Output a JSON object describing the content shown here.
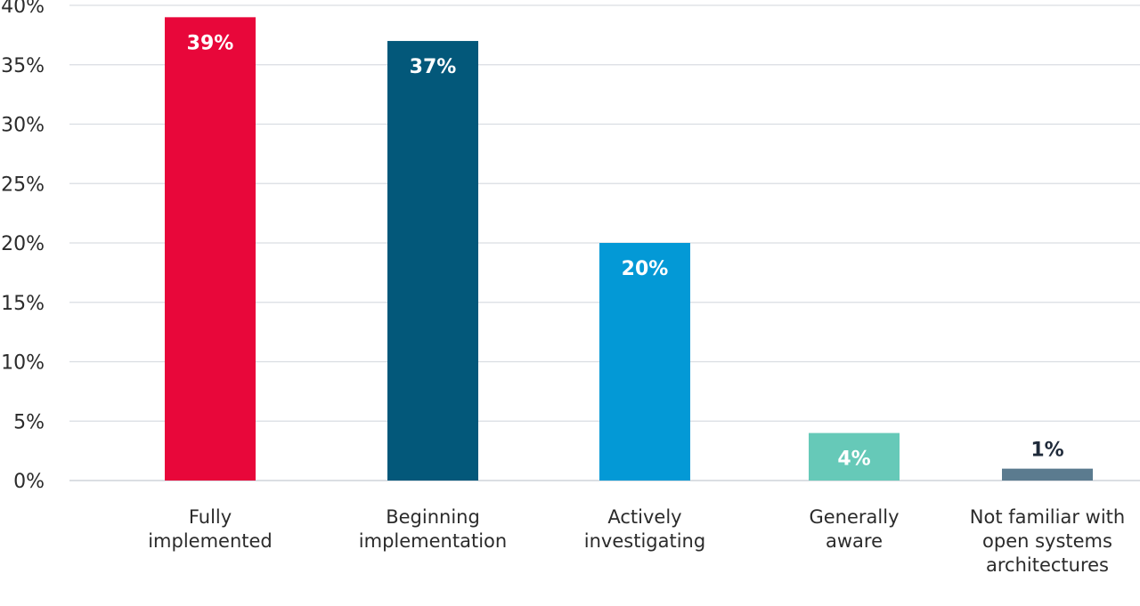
{
  "chart_data": {
    "type": "bar",
    "title": "",
    "xlabel": "",
    "ylabel": "",
    "ylim": [
      0,
      40
    ],
    "y_ticks": [
      0,
      5,
      10,
      15,
      20,
      25,
      30,
      35,
      40
    ],
    "y_tick_format": "%",
    "grid": true,
    "legend": "none",
    "categories": [
      [
        "Fully",
        "implemented"
      ],
      [
        "Beginning",
        "implementation"
      ],
      [
        "Actively",
        "investigating"
      ],
      [
        "Generally",
        "aware"
      ],
      [
        "Not familiar with",
        "open systems",
        "architectures"
      ]
    ],
    "values": [
      39,
      37,
      20,
      4,
      1
    ],
    "value_labels": [
      "39%",
      "37%",
      "20%",
      "4%",
      "1%"
    ],
    "colors": [
      "#e8073a",
      "#03587a",
      "#0399d6",
      "#66c9b8",
      "#5b7b8f"
    ],
    "value_label_colors": [
      "#ffffff",
      "#ffffff",
      "#ffffff",
      "#ffffff",
      "#1f2a3a"
    ],
    "value_label_position": [
      "inside",
      "inside",
      "inside",
      "inside",
      "above"
    ]
  }
}
